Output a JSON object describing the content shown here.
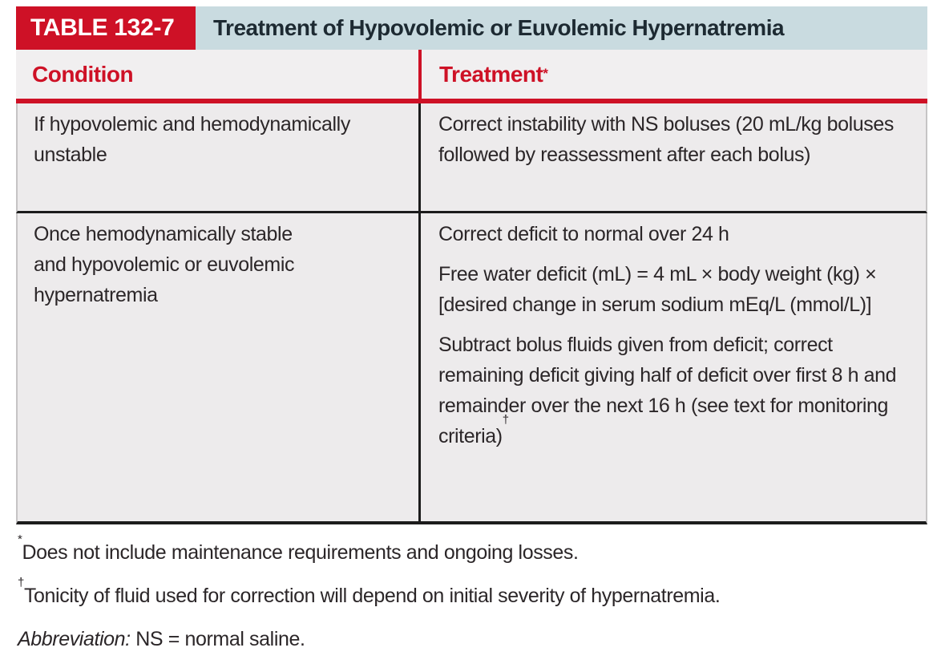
{
  "table": {
    "label": "TABLE 132-7",
    "title": "Treatment of Hypovolemic or Euvolemic Hypernatremia",
    "columns": [
      {
        "label": "Condition"
      },
      {
        "label": "Treatment",
        "marker": "*"
      }
    ],
    "rows": [
      {
        "condition": "If hypovolemic and hemodynamically unstable",
        "treatment": [
          {
            "text": "Correct instability with NS boluses (20 mL/kg boluses followed by reassessment after each bolus)"
          }
        ]
      },
      {
        "condition": "Once hemodynamically stable\nand hypovolemic or euvolemic\nhypernatremia",
        "treatment": [
          {
            "text": "Correct deficit to normal over 24 h"
          },
          {
            "text": "Free water deficit (mL) = 4 mL × body weight (kg) × [desired change in serum sodium mEq/L (mmol/L)]"
          },
          {
            "text": "Subtract bolus fluids given from deficit; correct remaining deficit giving half of deficit over first 8 h and remainder over the next 16 h (see text for monitoring criteria)",
            "marker": "†"
          }
        ]
      }
    ]
  },
  "footnotes": [
    {
      "marker": "*",
      "text": "Does not include maintenance requirements and ongoing losses."
    },
    {
      "marker": "†",
      "text": "Tonicity of fluid used for correction will depend on initial severity of hypernatremia."
    },
    {
      "lead": "Abbreviation:",
      "text": " NS = normal saline."
    }
  ],
  "colors": {
    "accent_red": "#ce1126",
    "title_band": "#c9dbe0",
    "header_row_bg": "#f1eff0",
    "body_row_bg": "#edebec",
    "rule_black": "#1c1c1c",
    "text": "#2b2628"
  }
}
